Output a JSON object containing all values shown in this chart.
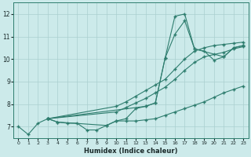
{
  "xlabel": "Humidex (Indice chaleur)",
  "bg_color": "#cceaea",
  "line_color": "#2e7d6e",
  "grid_color": "#aacfcf",
  "xlim": [
    -0.5,
    23.5
  ],
  "ylim": [
    6.5,
    12.5
  ],
  "xticks": [
    0,
    1,
    2,
    3,
    4,
    5,
    6,
    7,
    8,
    9,
    10,
    11,
    12,
    13,
    14,
    15,
    16,
    17,
    18,
    19,
    20,
    21,
    22,
    23
  ],
  "yticks": [
    7,
    8,
    9,
    10,
    11,
    12
  ],
  "line_jagged_x": [
    0,
    1,
    2,
    3,
    4,
    5,
    6,
    7,
    8,
    9,
    10,
    11,
    12,
    13,
    14,
    15,
    16,
    17,
    18,
    19,
    20,
    21,
    22,
    23
  ],
  "line_jagged_y": [
    7.0,
    6.65,
    7.15,
    7.35,
    7.2,
    7.15,
    7.15,
    6.85,
    6.85,
    7.05,
    7.25,
    7.25,
    7.25,
    7.3,
    7.35,
    7.5,
    7.65,
    7.8,
    7.95,
    8.1,
    8.3,
    8.5,
    8.65,
    8.8
  ],
  "line_spike_x": [
    3,
    4,
    9,
    10,
    11,
    12,
    13,
    14,
    15,
    16,
    17,
    18,
    21,
    22,
    23
  ],
  "line_spike_y": [
    7.35,
    7.2,
    7.05,
    7.25,
    7.35,
    7.8,
    7.9,
    8.05,
    10.05,
    11.9,
    12.0,
    10.45,
    10.1,
    10.5,
    10.6
  ],
  "line_diag1_x": [
    3,
    13,
    14,
    15,
    16,
    17,
    18,
    19,
    20,
    21,
    22,
    23
  ],
  "line_diag1_y": [
    7.35,
    7.9,
    8.05,
    10.05,
    11.1,
    11.7,
    10.45,
    10.35,
    9.95,
    10.1,
    10.5,
    10.6
  ],
  "line_diag2_x": [
    3,
    10,
    11,
    12,
    13,
    14,
    15,
    16,
    17,
    18,
    19,
    20,
    21,
    22,
    23
  ],
  "line_diag2_y": [
    7.35,
    7.9,
    8.1,
    8.35,
    8.6,
    8.85,
    9.1,
    9.55,
    10.0,
    10.35,
    10.5,
    10.6,
    10.65,
    10.7,
    10.75
  ],
  "line_diag3_x": [
    3,
    10,
    11,
    12,
    13,
    14,
    15,
    16,
    17,
    18,
    19,
    20,
    21,
    22,
    23
  ],
  "line_diag3_y": [
    7.35,
    7.65,
    7.85,
    8.05,
    8.25,
    8.5,
    8.75,
    9.1,
    9.5,
    9.85,
    10.1,
    10.2,
    10.3,
    10.45,
    10.55
  ]
}
